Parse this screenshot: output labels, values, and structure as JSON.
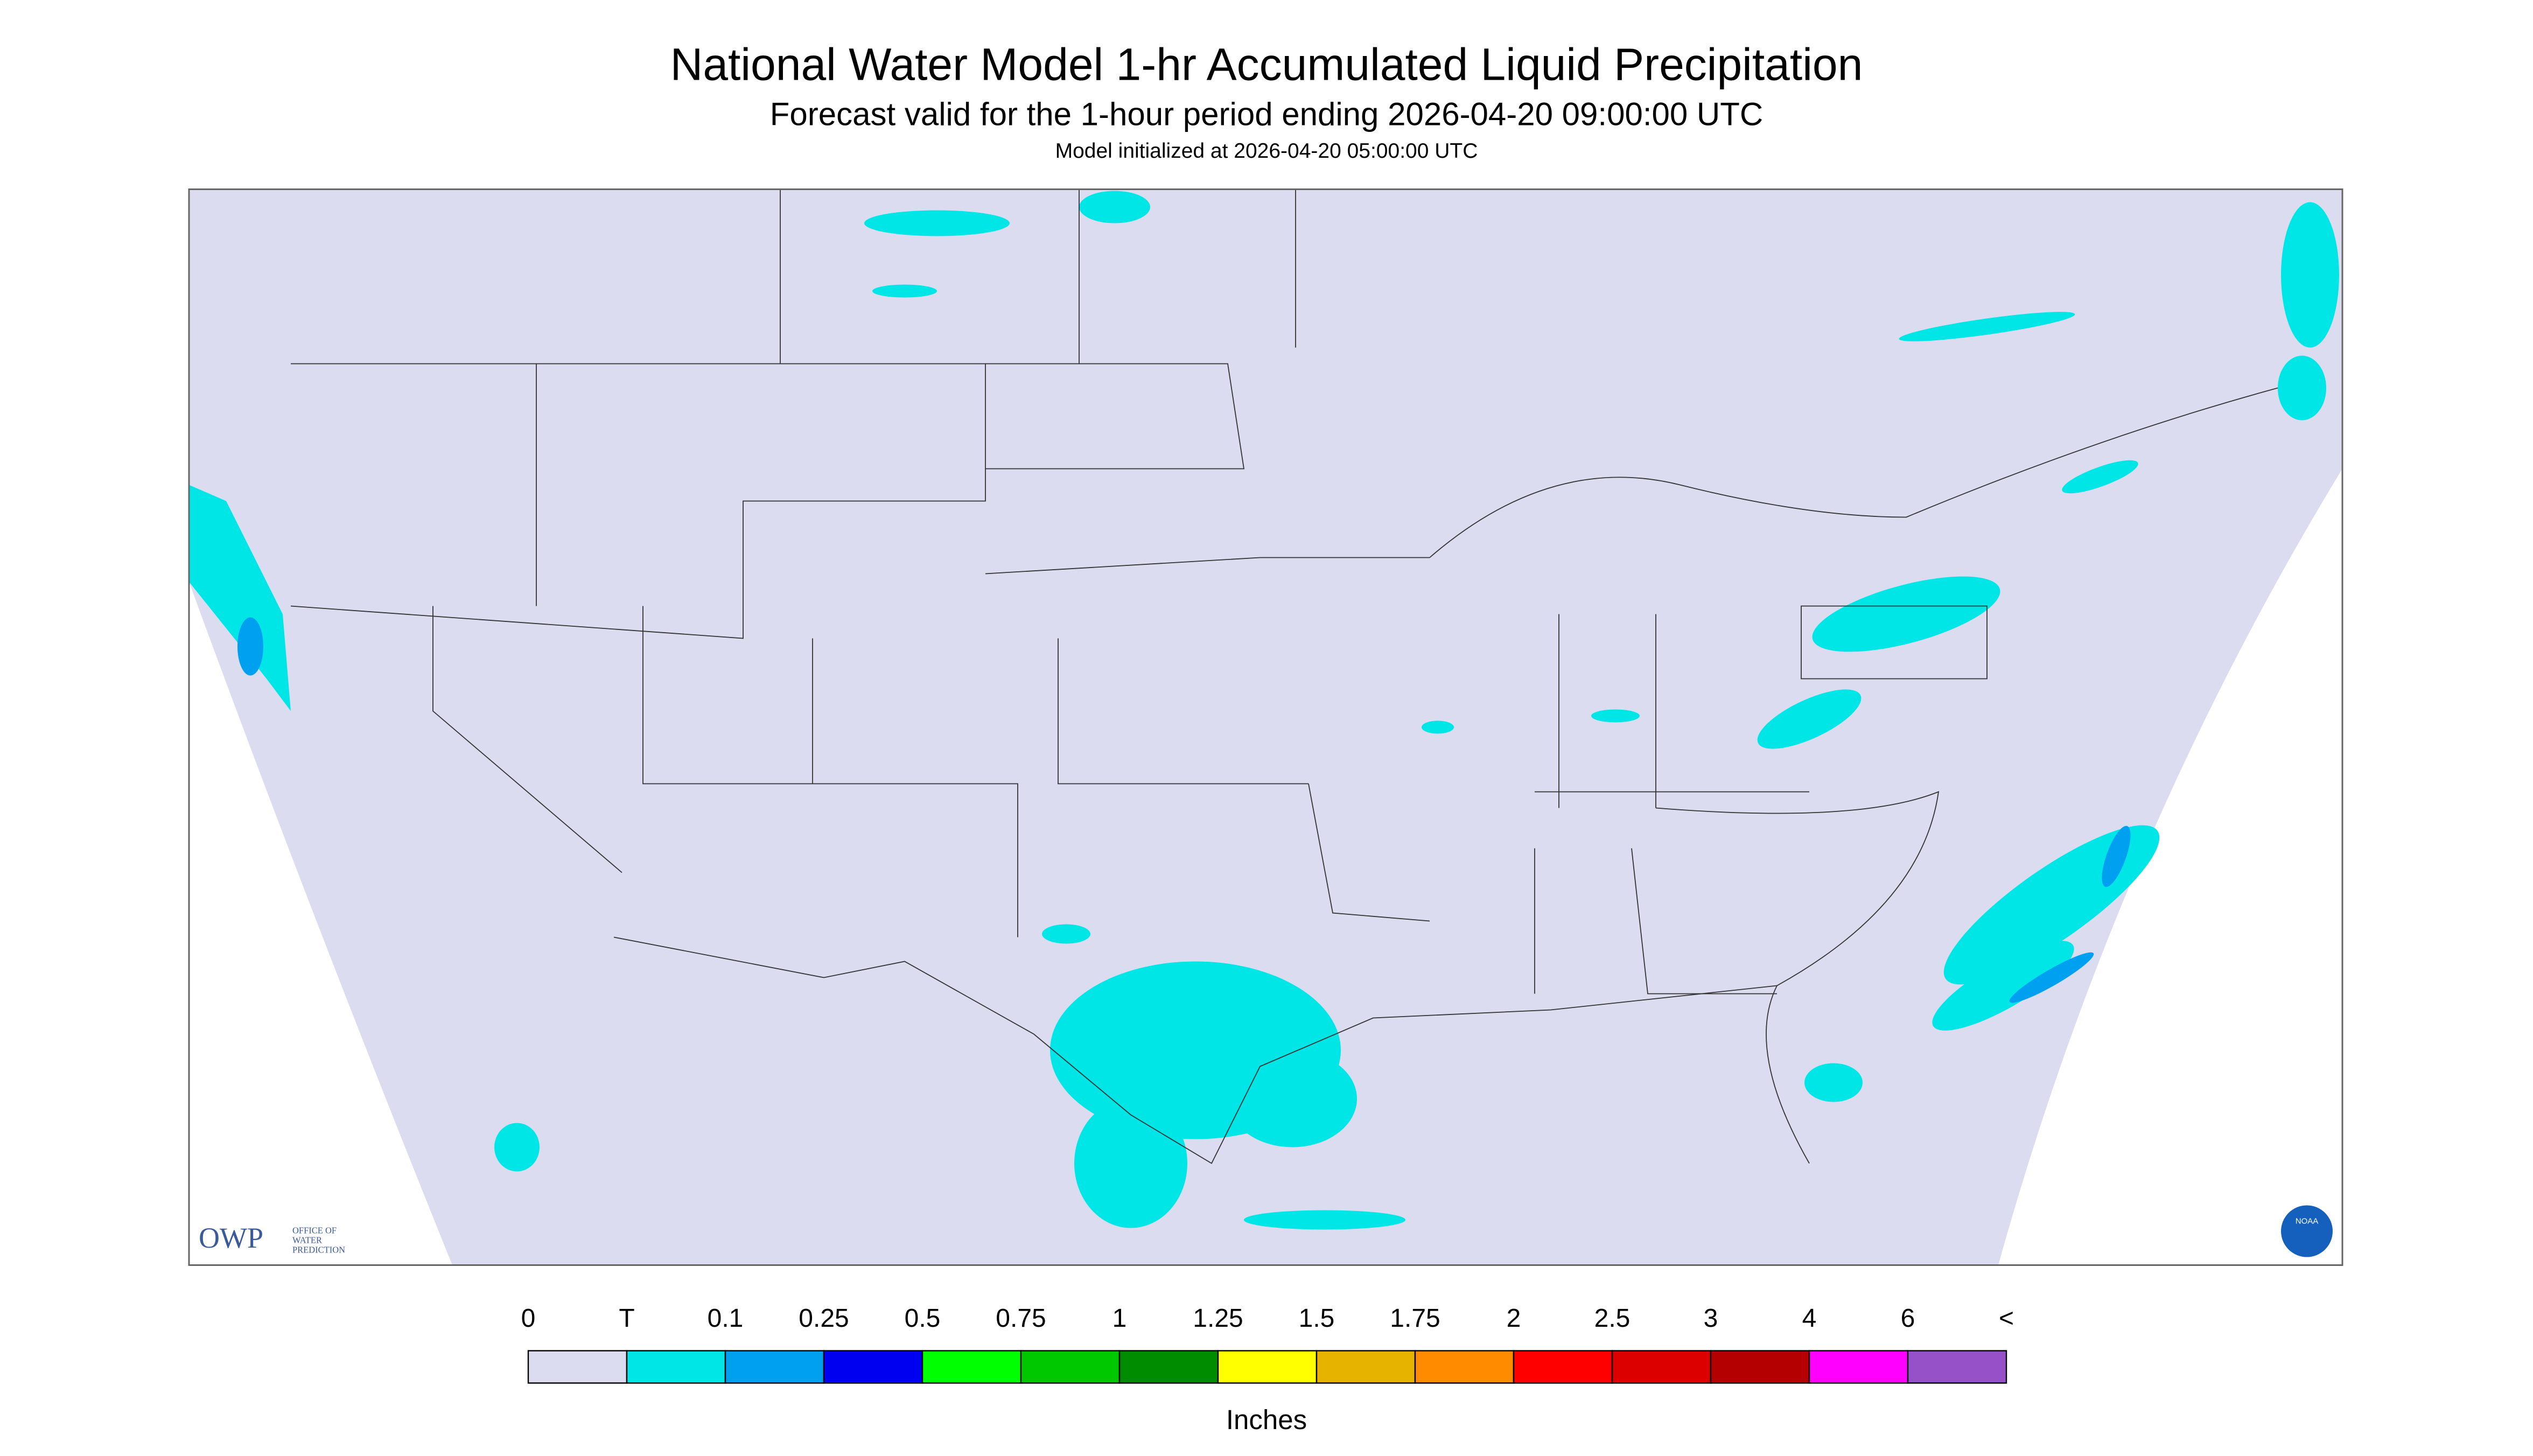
{
  "header": {
    "title": "National Water Model 1-hr Accumulated Liquid Precipitation",
    "subtitle": "Forecast valid for the 1-hour period ending 2026-04-20 09:00:00 UTC",
    "init": "Model initialized at 2026-04-20 05:00:00 UTC"
  },
  "legend": {
    "labels": [
      "0",
      "T",
      "0.1",
      "0.25",
      "0.5",
      "0.75",
      "1",
      "1.25",
      "1.5",
      "1.75",
      "2",
      "2.5",
      "3",
      "4",
      "6",
      "<"
    ],
    "colors": [
      "#dcdcf0",
      "#00e6e6",
      "#00a0f0",
      "#0000f0",
      "#00ff00",
      "#00c800",
      "#008c00",
      "#ffff00",
      "#e6b400",
      "#ff8c00",
      "#ff0000",
      "#dc0000",
      "#b40000",
      "#ff00ff",
      "#9650c8"
    ],
    "units": "Inches"
  },
  "logos": {
    "owp": "OWP",
    "owp_lines": [
      "OFFICE OF",
      "WATER",
      "PREDICTION"
    ],
    "noaa": "NOAA"
  }
}
